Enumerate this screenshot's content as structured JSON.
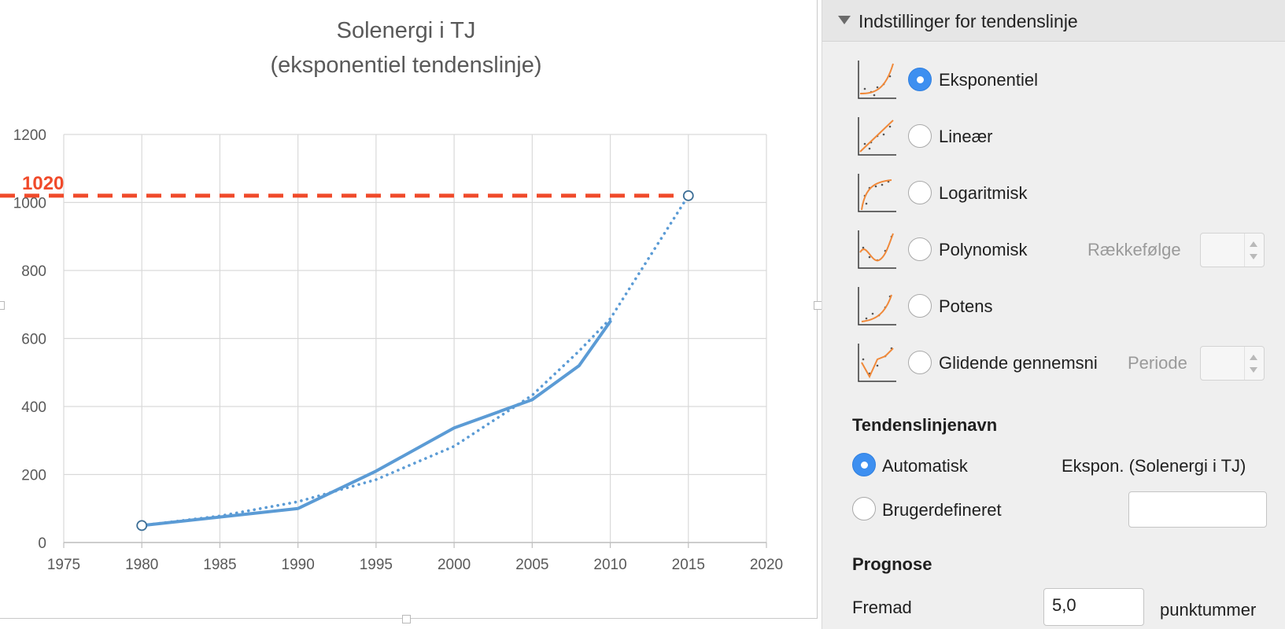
{
  "chart": {
    "title_line1": "Solenergi i TJ",
    "title_line2": "(eksponentiel tendenslinje)",
    "reference_label": "1020",
    "colors": {
      "line": "#5b9bd5",
      "reference": "#f04a2a",
      "grid": "#d9d9d9",
      "axis_text": "#595959"
    }
  },
  "chart_data": {
    "type": "line",
    "title": "Solenergi i TJ (eksponentiel tendenslinje)",
    "xlabel": "",
    "ylabel": "",
    "xlim": [
      1975,
      2020
    ],
    "ylim": [
      0,
      1200
    ],
    "x_ticks": [
      1975,
      1980,
      1985,
      1990,
      1995,
      2000,
      2005,
      2010,
      2015,
      2020
    ],
    "y_ticks": [
      0,
      200,
      400,
      600,
      800,
      1000,
      1200
    ],
    "grid": true,
    "series": [
      {
        "style": "solid",
        "x": [
          1980,
          1990,
          1995,
          2000,
          2005,
          2008,
          2010
        ],
        "y": [
          50,
          100,
          210,
          337,
          420,
          520,
          650
        ]
      },
      {
        "style": "dotted",
        "x": [
          1980,
          1985,
          1990,
          1995,
          2000,
          2005,
          2008,
          2010,
          2015
        ],
        "y": [
          50,
          78,
          120,
          185,
          283,
          433,
          563,
          658,
          1020
        ]
      }
    ],
    "markers": [
      {
        "x": 1980,
        "y": 50
      },
      {
        "x": 2015,
        "y": 1020
      }
    ],
    "reference_line": {
      "y": 1020,
      "label": "1020",
      "style": "dashed"
    }
  },
  "panel": {
    "header_title": "Indstillinger for tendenslinje",
    "options": [
      {
        "label": "Eksponentiel",
        "selected": true,
        "icon": "exponential-trend-icon"
      },
      {
        "label": "Lineær",
        "selected": false,
        "icon": "linear-trend-icon"
      },
      {
        "label": "Logaritmisk",
        "selected": false,
        "icon": "logarithmic-trend-icon"
      },
      {
        "label": "Polynomisk",
        "selected": false,
        "icon": "polynomial-trend-icon"
      },
      {
        "label": "Potens",
        "selected": false,
        "icon": "power-trend-icon"
      },
      {
        "label": "Glidende gennemsni",
        "selected": false,
        "icon": "moving-average-trend-icon"
      }
    ],
    "order_label": "Rækkefølge",
    "period_label": "Periode",
    "name_section": "Tendenslinjenavn",
    "auto_label": "Automatisk",
    "auto_name": "Ekspon.  (Solenergi i TJ)",
    "custom_label": "Brugerdefineret",
    "custom_value": "",
    "name_choice": "Automatisk",
    "forecast_section": "Prognose",
    "forward_label": "Fremad",
    "forward_value": "5,0",
    "points_label": "punktummer"
  }
}
